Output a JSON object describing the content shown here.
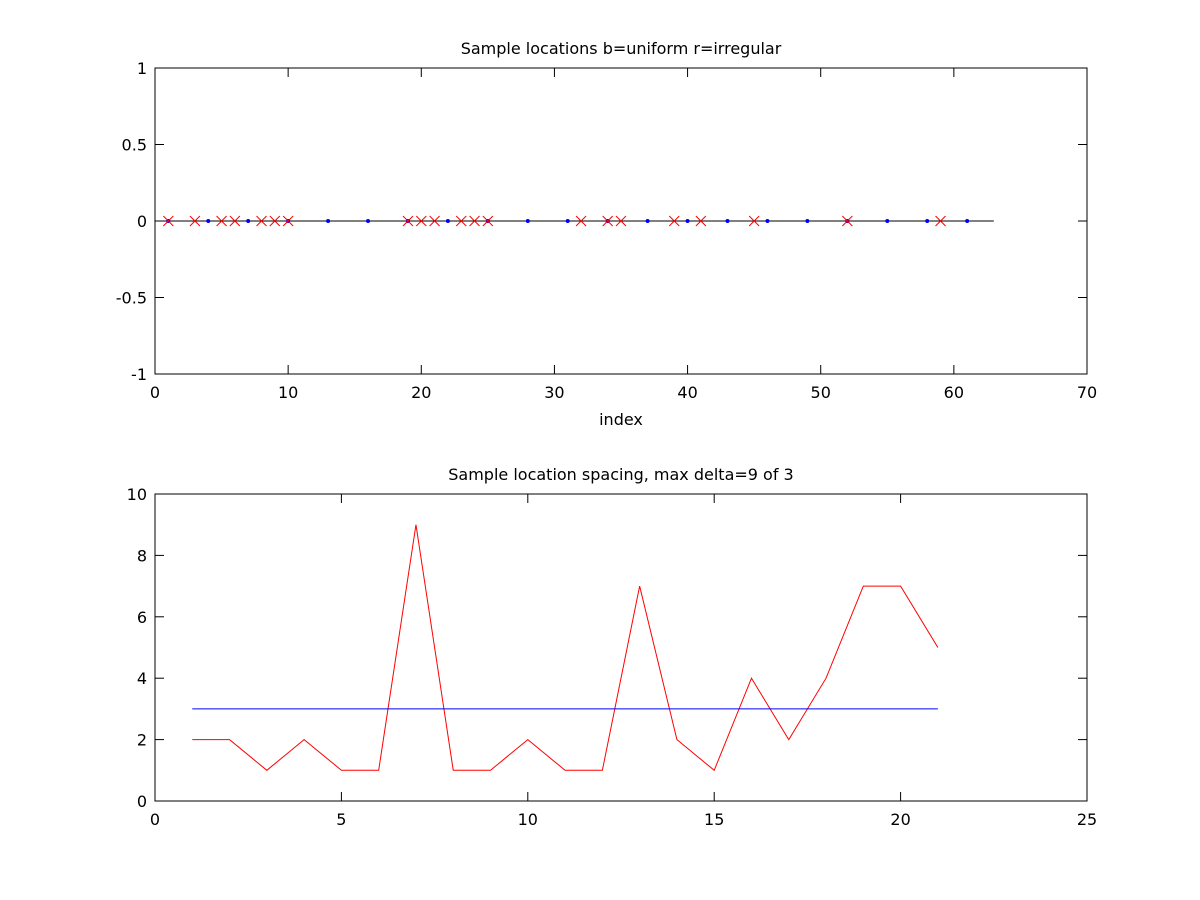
{
  "chart_data": [
    {
      "type": "scatter",
      "title": "Sample locations b=uniform r=irregular",
      "xlabel": "index",
      "ylabel": "",
      "xlim": [
        0,
        70
      ],
      "ylim": [
        -1,
        1
      ],
      "xticks": [
        0,
        10,
        20,
        30,
        40,
        50,
        60,
        70
      ],
      "yticks": [
        -1,
        -0.5,
        0,
        0.5,
        1
      ],
      "grid": false,
      "baseline": {
        "y": 0,
        "x": [
          0,
          63
        ],
        "color": "#000000"
      },
      "series": [
        {
          "marker": "dot",
          "color": "#0000ff",
          "x": [
            1,
            4,
            7,
            10,
            13,
            16,
            19,
            22,
            25,
            28,
            31,
            34,
            37,
            40,
            43,
            46,
            49,
            52,
            55,
            58,
            61
          ],
          "y": [
            0,
            0,
            0,
            0,
            0,
            0,
            0,
            0,
            0,
            0,
            0,
            0,
            0,
            0,
            0,
            0,
            0,
            0,
            0,
            0,
            0
          ]
        },
        {
          "marker": "x",
          "color": "#ff0000",
          "x": [
            1,
            3,
            5,
            6,
            8,
            9,
            10,
            19,
            20,
            21,
            23,
            24,
            25,
            32,
            34,
            35,
            39,
            41,
            45,
            52,
            59
          ],
          "y": [
            0,
            0,
            0,
            0,
            0,
            0,
            0,
            0,
            0,
            0,
            0,
            0,
            0,
            0,
            0,
            0,
            0,
            0,
            0,
            0,
            0
          ]
        }
      ]
    },
    {
      "type": "line",
      "title": "Sample location spacing, max delta=9 of 3",
      "xlabel": "",
      "ylabel": "",
      "xlim": [
        0,
        25
      ],
      "ylim": [
        0,
        10
      ],
      "xticks": [
        0,
        5,
        10,
        15,
        20,
        25
      ],
      "yticks": [
        0,
        2,
        4,
        6,
        8,
        10
      ],
      "grid": false,
      "series": [
        {
          "color": "#ff0000",
          "x": [
            1,
            2,
            3,
            4,
            5,
            6,
            7,
            8,
            9,
            10,
            11,
            12,
            13,
            14,
            15,
            16,
            17,
            18,
            19,
            20,
            21
          ],
          "y": [
            2,
            2,
            1,
            2,
            1,
            1,
            9,
            1,
            1,
            2,
            1,
            1,
            7,
            2,
            1,
            4,
            2,
            4,
            7,
            7,
            5
          ]
        },
        {
          "color": "#0000ff",
          "x": [
            1,
            21
          ],
          "y": [
            3,
            3
          ]
        }
      ]
    }
  ]
}
